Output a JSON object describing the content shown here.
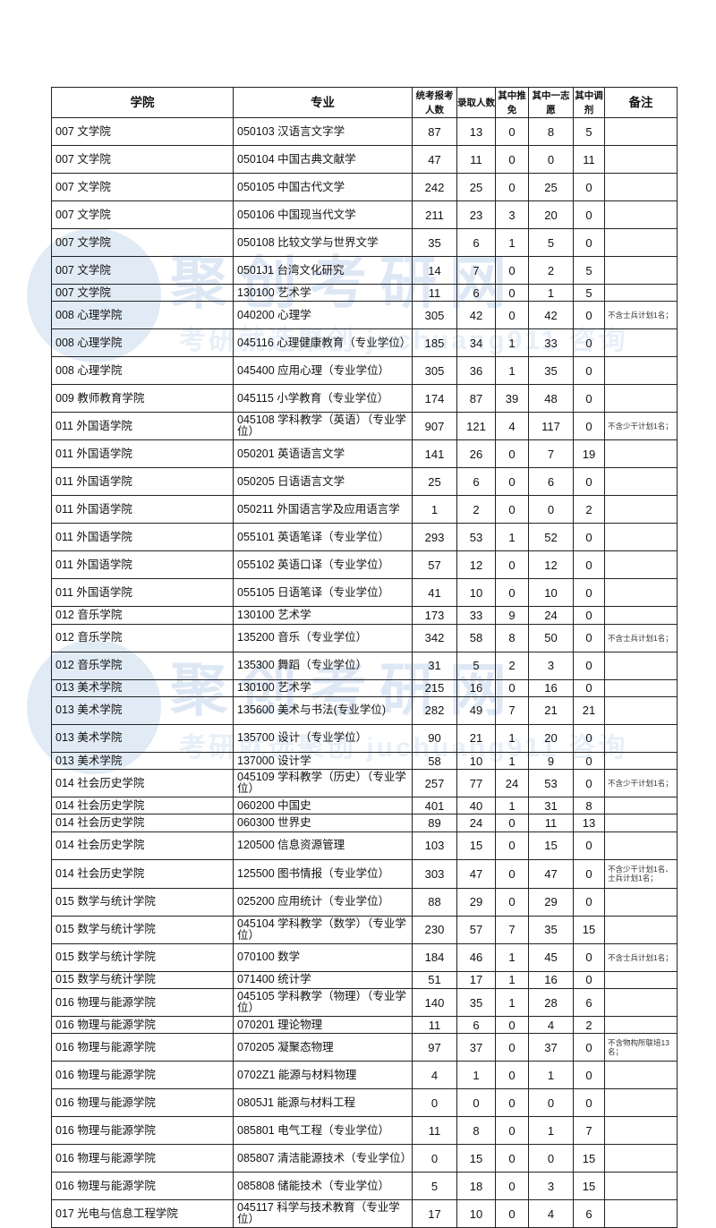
{
  "watermark": {
    "logo": "聚创考研网",
    "slogan": "考研就选聚创 juchuang911 咨询",
    "color": "#4682c8"
  },
  "table": {
    "headers": [
      "学院",
      "专业",
      "统考报考人数",
      "录取人数",
      "其中推免",
      "其中一志愿",
      "其中调剂",
      "备注"
    ],
    "rows": [
      [
        "007 文学院",
        "050103 汉语言文字学",
        "87",
        "13",
        "0",
        "8",
        "5",
        ""
      ],
      [
        "007 文学院",
        "050104 中国古典文献学",
        "47",
        "11",
        "0",
        "0",
        "11",
        ""
      ],
      [
        "007 文学院",
        "050105 中国古代文学",
        "242",
        "25",
        "0",
        "25",
        "0",
        ""
      ],
      [
        "007 文学院",
        "050106 中国现当代文学",
        "211",
        "23",
        "3",
        "20",
        "0",
        ""
      ],
      [
        "007 文学院",
        "050108 比较文学与世界文学",
        "35",
        "6",
        "1",
        "5",
        "0",
        ""
      ],
      [
        "007 文学院",
        "0501J1 台湾文化研究",
        "14",
        "7",
        "0",
        "2",
        "5",
        ""
      ],
      [
        "007 文学院",
        "130100 艺术学",
        "11",
        "6",
        "0",
        "1",
        "5",
        ""
      ],
      [
        "008 心理学院",
        "040200 心理学",
        "305",
        "42",
        "0",
        "42",
        "0",
        "不含士兵计划1名；"
      ],
      [
        "008 心理学院",
        "045116 心理健康教育（专业学位）",
        "185",
        "34",
        "1",
        "33",
        "0",
        ""
      ],
      [
        "008 心理学院",
        "045400 应用心理（专业学位）",
        "305",
        "36",
        "1",
        "35",
        "0",
        ""
      ],
      [
        "009 教师教育学院",
        "045115 小学教育（专业学位）",
        "174",
        "87",
        "39",
        "48",
        "0",
        ""
      ],
      [
        "011 外国语学院",
        "045108 学科教学（英语）（专业学位）",
        "907",
        "121",
        "4",
        "117",
        "0",
        "不含少干计划1名；"
      ],
      [
        "011 外国语学院",
        "050201 英语语言文学",
        "141",
        "26",
        "0",
        "7",
        "19",
        ""
      ],
      [
        "011 外国语学院",
        "050205 日语语言文学",
        "25",
        "6",
        "0",
        "6",
        "0",
        ""
      ],
      [
        "011 外国语学院",
        "050211 外国语言学及应用语言学",
        "1",
        "2",
        "0",
        "0",
        "2",
        ""
      ],
      [
        "011 外国语学院",
        "055101 英语笔译（专业学位）",
        "293",
        "53",
        "1",
        "52",
        "0",
        ""
      ],
      [
        "011 外国语学院",
        "055102 英语口译（专业学位）",
        "57",
        "12",
        "0",
        "12",
        "0",
        ""
      ],
      [
        "011 外国语学院",
        "055105 日语笔译（专业学位）",
        "41",
        "10",
        "0",
        "10",
        "0",
        ""
      ],
      [
        "012 音乐学院",
        "130100 艺术学",
        "173",
        "33",
        "9",
        "24",
        "0",
        ""
      ],
      [
        "012 音乐学院",
        "135200 音乐（专业学位）",
        "342",
        "58",
        "8",
        "50",
        "0",
        "不含士兵计划1名；"
      ],
      [
        "012 音乐学院",
        "135300 舞蹈（专业学位）",
        "31",
        "5",
        "2",
        "3",
        "0",
        ""
      ],
      [
        "013 美术学院",
        "130100 艺术学",
        "215",
        "16",
        "0",
        "16",
        "0",
        ""
      ],
      [
        "013 美术学院",
        "135600 美术与书法(专业学位)",
        "282",
        "49",
        "7",
        "21",
        "21",
        ""
      ],
      [
        "013 美术学院",
        "135700 设计（专业学位）",
        "90",
        "21",
        "1",
        "20",
        "0",
        ""
      ],
      [
        "013 美术学院",
        "137000 设计学",
        "58",
        "10",
        "1",
        "9",
        "0",
        ""
      ],
      [
        "014 社会历史学院",
        "045109 学科教学（历史）（专业学位）",
        "257",
        "77",
        "24",
        "53",
        "0",
        "不含少干计划1名；"
      ],
      [
        "014 社会历史学院",
        "060200 中国史",
        "401",
        "40",
        "1",
        "31",
        "8",
        ""
      ],
      [
        "014 社会历史学院",
        "060300 世界史",
        "89",
        "24",
        "0",
        "11",
        "13",
        ""
      ],
      [
        "014 社会历史学院",
        "120500 信息资源管理",
        "103",
        "15",
        "0",
        "15",
        "0",
        ""
      ],
      [
        "014 社会历史学院",
        "125500 图书情报（专业学位）",
        "303",
        "47",
        "0",
        "47",
        "0",
        "不含少干计划1名、士兵计划1名；"
      ],
      [
        "015 数学与统计学院",
        "025200 应用统计（专业学位）",
        "88",
        "29",
        "0",
        "29",
        "0",
        ""
      ],
      [
        "015 数学与统计学院",
        "045104 学科教学（数学）（专业学位）",
        "230",
        "57",
        "7",
        "35",
        "15",
        ""
      ],
      [
        "015 数学与统计学院",
        "070100 数学",
        "184",
        "46",
        "1",
        "45",
        "0",
        "不含士兵计划1名；"
      ],
      [
        "015 数学与统计学院",
        "071400 统计学",
        "51",
        "17",
        "1",
        "16",
        "0",
        ""
      ],
      [
        "016 物理与能源学院",
        "045105 学科教学（物理）（专业学位）",
        "140",
        "35",
        "1",
        "28",
        "6",
        ""
      ],
      [
        "016 物理与能源学院",
        "070201 理论物理",
        "11",
        "6",
        "0",
        "4",
        "2",
        ""
      ],
      [
        "016 物理与能源学院",
        "070205 凝聚态物理",
        "97",
        "37",
        "0",
        "37",
        "0",
        "不含物构所联培13名；"
      ],
      [
        "016 物理与能源学院",
        "0702Z1 能源与材料物理",
        "4",
        "1",
        "0",
        "1",
        "0",
        ""
      ],
      [
        "016 物理与能源学院",
        "0805J1 能源与材料工程",
        "0",
        "0",
        "0",
        "0",
        "0",
        ""
      ],
      [
        "016 物理与能源学院",
        "085801 电气工程（专业学位）",
        "11",
        "8",
        "0",
        "1",
        "7",
        ""
      ],
      [
        "016 物理与能源学院",
        "085807 清洁能源技术（专业学位）",
        "0",
        "15",
        "0",
        "0",
        "15",
        ""
      ],
      [
        "016 物理与能源学院",
        "085808 储能技术（专业学位）",
        "5",
        "18",
        "0",
        "3",
        "15",
        ""
      ],
      [
        "017 光电与信息工程学院",
        "045117 科学与技术教育（专业学位）",
        "17",
        "10",
        "0",
        "4",
        "6",
        ""
      ]
    ]
  }
}
